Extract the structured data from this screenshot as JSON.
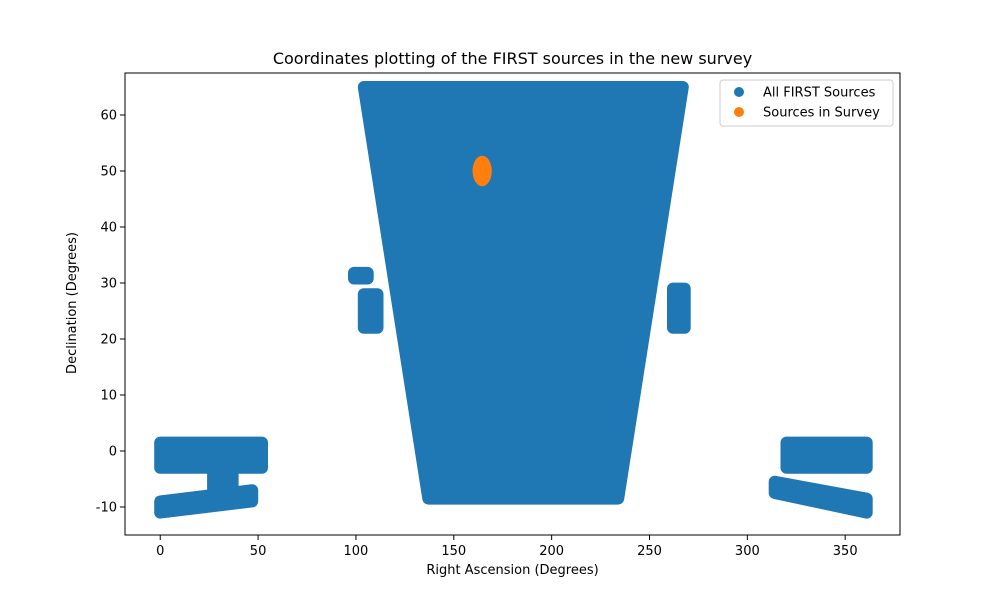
{
  "chart_data": {
    "type": "scatter",
    "title": "Coordinates plotting of the FIRST sources in the new survey",
    "xlabel": "Right Ascension (Degrees)",
    "ylabel": "Declination (Degrees)",
    "xlim": [
      -18,
      378
    ],
    "ylim": [
      -15,
      67.5
    ],
    "xticks": [
      0,
      50,
      100,
      150,
      200,
      250,
      300,
      350
    ],
    "yticks": [
      -10,
      0,
      10,
      20,
      30,
      40,
      50,
      60
    ],
    "grid": false,
    "legend_position": "top-right",
    "series": [
      {
        "name": "All FIRST Sources",
        "color": "#1f77b4",
        "regions": [
          {
            "shape": "band",
            "ra": [
              0,
              52
            ],
            "dec": [
              -3,
              1.5
            ]
          },
          {
            "shape": "band",
            "ra": [
              27,
              37
            ],
            "dec": [
              -8,
              -3
            ]
          },
          {
            "shape": "band-sloped",
            "ra": [
              0,
              47
            ],
            "dec_bottom": [
              -11,
              -9
            ],
            "dec_top": [
              -9,
              -7
            ]
          },
          {
            "shape": "band",
            "ra": [
              99,
              106
            ],
            "dec": [
              30.8,
              31.8
            ]
          },
          {
            "shape": "trapezoid",
            "ra_top": [
              104,
              267
            ],
            "ra_bottom": [
              137,
              234
            ],
            "dec": [
              -8.5,
              65
            ]
          },
          {
            "shape": "band",
            "ra": [
              104,
              111
            ],
            "dec": [
              22,
              28
            ]
          },
          {
            "shape": "band",
            "ra": [
              262,
              268
            ],
            "dec": [
              22,
              29
            ]
          },
          {
            "shape": "band",
            "ra": [
              320,
              361
            ],
            "dec": [
              -3,
              1.5
            ]
          },
          {
            "shape": "band-sloped",
            "ra": [
              314,
              361
            ],
            "dec_top": [
              -5.5,
              -8.5
            ],
            "dec_bottom": [
              -7.5,
              -11
            ]
          }
        ]
      },
      {
        "name": "Sources in Survey",
        "color": "#ff7f0e",
        "regions": [
          {
            "shape": "ellipse",
            "ra": 164.5,
            "dec": 50,
            "ra_halfwidth": 4,
            "dec_halfwidth": 2.4
          }
        ]
      }
    ]
  }
}
